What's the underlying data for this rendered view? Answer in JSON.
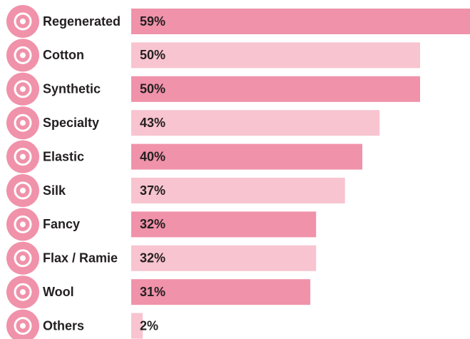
{
  "chart_data": {
    "type": "hbar",
    "categories": [
      "Regenerated",
      "Cotton",
      "Synthetic",
      "Specialty",
      "Elastic",
      "Silk",
      "Fancy",
      "Flax / Ramie",
      "Wool",
      "Others"
    ],
    "values": [
      59,
      50,
      50,
      43,
      40,
      37,
      32,
      32,
      31,
      2
    ],
    "value_labels": [
      "59%",
      "50%",
      "50%",
      "43%",
      "40%",
      "37%",
      "32%",
      "32%",
      "31%",
      "2%"
    ],
    "colors": [
      "#f092aa",
      "#f8c4d0"
    ],
    "icon_color": "#f092aa"
  }
}
